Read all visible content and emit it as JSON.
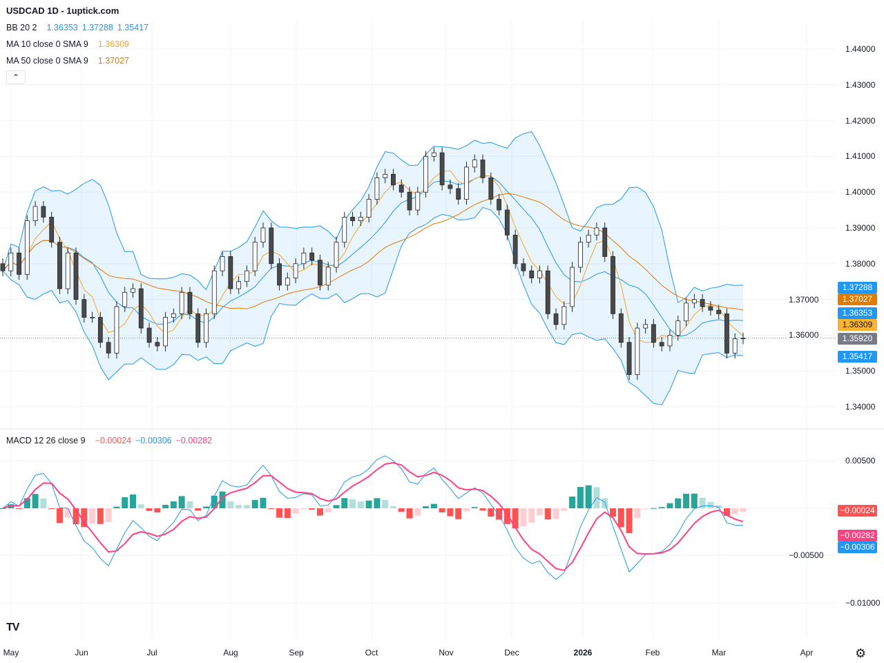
{
  "header": {
    "title": "USDCAD 1D - 1uptick.com"
  },
  "legend": {
    "bb": {
      "label": "BB 20 2",
      "basis": "1.36353",
      "upper": "1.37288",
      "lower": "1.35417"
    },
    "ma10": {
      "label": "MA 10 close 0 SMA 9",
      "value": "1.36309"
    },
    "ma50": {
      "label": "MA 50 close 0 SMA 9",
      "value": "1.37027"
    },
    "macd": {
      "label": "MACD 12 26 close 9",
      "hist": "−0.00024",
      "macd": "−0.00306",
      "signal": "−0.00282"
    }
  },
  "price_labels": {
    "bb_upper": "1.37288",
    "ma50": "1.37027",
    "bb_basis": "1.36353",
    "ma10": "1.36309",
    "last": "1.35920",
    "bb_lower": "1.35417"
  },
  "macd_labels": {
    "hist": "−0.00024",
    "signal": "−0.00282",
    "macd": "−0.00306"
  },
  "price_ticks": [
    "1.44000",
    "1.43000",
    "1.42000",
    "1.41000",
    "1.40000",
    "1.39000",
    "1.38000",
    "1.37000",
    "1.36000",
    "1.35000",
    "1.34000"
  ],
  "macd_ticks": [
    "0.00500",
    "−0.00500",
    "−0.01000"
  ],
  "time_labels": [
    "May",
    "Jun",
    "Jul",
    "Aug",
    "Sep",
    "Oct",
    "Nov",
    "Dec",
    "2026",
    "Feb",
    "Mar",
    "Apr"
  ],
  "colors": {
    "bb": "#2196f3",
    "bb_fill": "rgba(33,150,243,0.1)",
    "ma10": "#f5a623",
    "ma50": "#e07b00",
    "up": "#ffffff",
    "down": "#4a4a4a",
    "macd": "#2196f3",
    "signal": "#ff4081",
    "hist_up": "#26a69a",
    "hist_up_fade": "#b2dfdb",
    "hist_dn": "#ff5252",
    "hist_dn_fade": "#ffcdd2",
    "last": "#787b86"
  },
  "icons": {
    "collapse": "chevron-up-icon",
    "logo": "tradingview-logo",
    "settings": "gear-icon"
  },
  "chart_data": {
    "type": "candlestick",
    "title": "USDCAD 1D",
    "price_range": [
      1.335,
      1.445
    ],
    "macd_range": [
      -0.0115,
      0.0065
    ],
    "x_range": [
      "May",
      "Apr"
    ],
    "grid": true,
    "last_price": 1.3592,
    "close": [
      1.378,
      1.383,
      1.377,
      1.392,
      1.396,
      1.393,
      1.386,
      1.373,
      1.383,
      1.37,
      1.365,
      1.365,
      1.358,
      1.355,
      1.368,
      1.372,
      1.373,
      1.362,
      1.358,
      1.357,
      1.365,
      1.366,
      1.372,
      1.366,
      1.358,
      1.366,
      1.378,
      1.382,
      1.373,
      1.375,
      1.378,
      1.386,
      1.39,
      1.38,
      1.374,
      1.376,
      1.38,
      1.383,
      1.381,
      1.374,
      1.379,
      1.386,
      1.393,
      1.392,
      1.393,
      1.398,
      1.404,
      1.405,
      1.402,
      1.4,
      1.395,
      1.4,
      1.41,
      1.411,
      1.402,
      1.401,
      1.398,
      1.407,
      1.409,
      1.404,
      1.398,
      1.395,
      1.388,
      1.38,
      1.378,
      1.376,
      1.378,
      1.366,
      1.363,
      1.368,
      1.379,
      1.386,
      1.388,
      1.39,
      1.382,
      1.366,
      1.358,
      1.349,
      1.362,
      1.363,
      1.358,
      1.357,
      1.36,
      1.364,
      1.369,
      1.37,
      1.368,
      1.367,
      1.366,
      1.355,
      1.359,
      1.3592
    ]
  }
}
